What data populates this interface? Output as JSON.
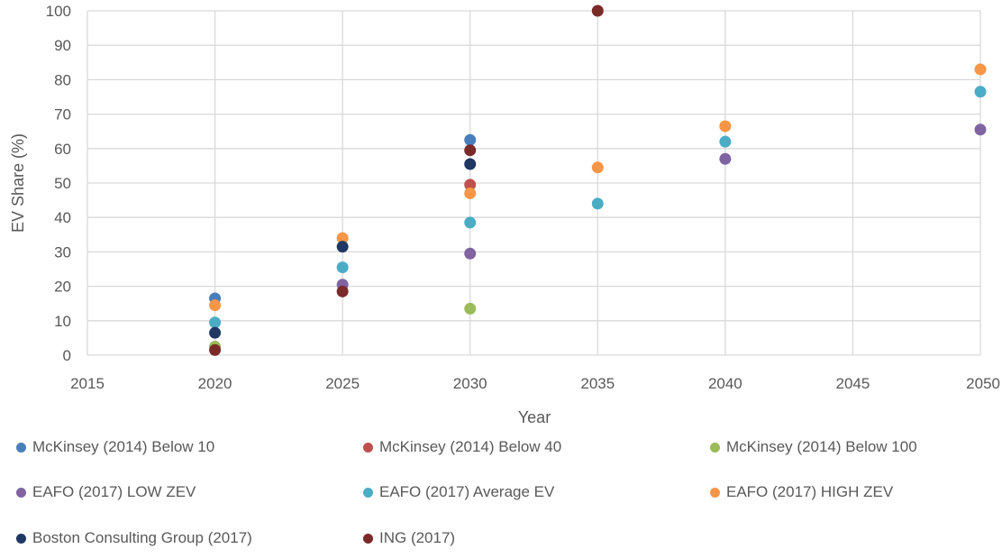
{
  "chart_data": {
    "type": "scatter",
    "title": "",
    "xlabel": "Year",
    "ylabel": "EV Share (%)",
    "xlim": [
      2015,
      2050
    ],
    "ylim": [
      0,
      100
    ],
    "xticks": [
      2015,
      2020,
      2025,
      2030,
      2035,
      2040,
      2045,
      2050
    ],
    "yticks": [
      0,
      10,
      20,
      30,
      40,
      50,
      60,
      70,
      80,
      90,
      100
    ],
    "grid": true,
    "legend_position": "bottom",
    "series": [
      {
        "name": "McKinsey (2014) Below 10",
        "color": "#4a7ebb",
        "points": [
          {
            "x": 2020,
            "y": 16.5
          },
          {
            "x": 2030,
            "y": 62.5
          }
        ]
      },
      {
        "name": "McKinsey (2014) Below 40",
        "color": "#c0504d",
        "points": [
          {
            "x": 2030,
            "y": 49.5
          }
        ]
      },
      {
        "name": "McKinsey (2014) Below 100",
        "color": "#9bbb59",
        "points": [
          {
            "x": 2020,
            "y": 2.5
          },
          {
            "x": 2030,
            "y": 13.5
          }
        ]
      },
      {
        "name": "EAFO (2017) LOW ZEV",
        "color": "#8064a2",
        "points": [
          {
            "x": 2025,
            "y": 20.5
          },
          {
            "x": 2030,
            "y": 29.5
          },
          {
            "x": 2040,
            "y": 57
          },
          {
            "x": 2050,
            "y": 65.5
          }
        ]
      },
      {
        "name": "EAFO (2017) Average EV",
        "color": "#4bacc6",
        "points": [
          {
            "x": 2020,
            "y": 9.5
          },
          {
            "x": 2025,
            "y": 25.5
          },
          {
            "x": 2030,
            "y": 38.5
          },
          {
            "x": 2035,
            "y": 44
          },
          {
            "x": 2040,
            "y": 62
          },
          {
            "x": 2050,
            "y": 76.5
          }
        ]
      },
      {
        "name": "EAFO (2017) HIGH ZEV",
        "color": "#f79646",
        "points": [
          {
            "x": 2020,
            "y": 14.5
          },
          {
            "x": 2025,
            "y": 34
          },
          {
            "x": 2030,
            "y": 47
          },
          {
            "x": 2035,
            "y": 54.5
          },
          {
            "x": 2040,
            "y": 66.5
          },
          {
            "x": 2050,
            "y": 83
          }
        ]
      },
      {
        "name": "Boston Consulting Group (2017)",
        "color": "#1f3864",
        "points": [
          {
            "x": 2020,
            "y": 6.5
          },
          {
            "x": 2025,
            "y": 31.5
          },
          {
            "x": 2030,
            "y": 55.5
          }
        ]
      },
      {
        "name": "ING (2017)",
        "color": "#7b2a2a",
        "points": [
          {
            "x": 2020,
            "y": 1.5
          },
          {
            "x": 2025,
            "y": 18.5
          },
          {
            "x": 2030,
            "y": 59.5
          },
          {
            "x": 2035,
            "y": 100
          }
        ]
      }
    ]
  }
}
